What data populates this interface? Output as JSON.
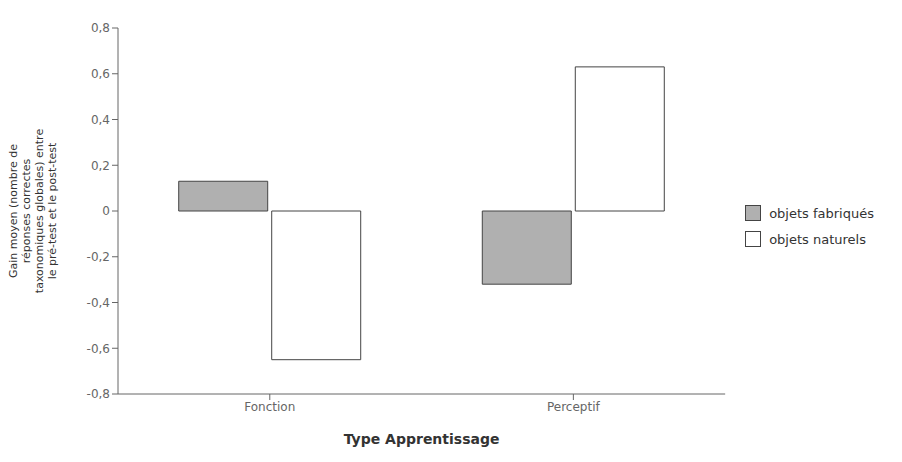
{
  "chart_data": {
    "type": "bar",
    "categories": [
      "Fonction",
      "Perceptif"
    ],
    "series": [
      {
        "name": "objets fabriqués",
        "color": "#b0b0b0",
        "values": [
          0.13,
          -0.32
        ]
      },
      {
        "name": "objets naturels",
        "color": "#ffffff",
        "values": [
          -0.65,
          0.63
        ]
      }
    ],
    "xlabel": "Type Apprentissage",
    "ylabel": "Gain moyen (nombre de\nréponses correctes\ntaxonomiques globales) entre\nle pré-test et le post-test",
    "ylim": [
      -0.8,
      0.8
    ],
    "yticks": [
      {
        "value": -0.8,
        "label": "-0,8"
      },
      {
        "value": -0.6,
        "label": "-0,6"
      },
      {
        "value": -0.4,
        "label": "-0,4"
      },
      {
        "value": -0.2,
        "label": "-0,2"
      },
      0,
      {
        "value": 0.2,
        "label": "0,2"
      },
      {
        "value": 0.4,
        "label": "0,4"
      },
      {
        "value": 0.6,
        "label": "0,6"
      },
      {
        "value": 0.8,
        "label": "0,8"
      }
    ],
    "grid": false,
    "legend": "right"
  }
}
